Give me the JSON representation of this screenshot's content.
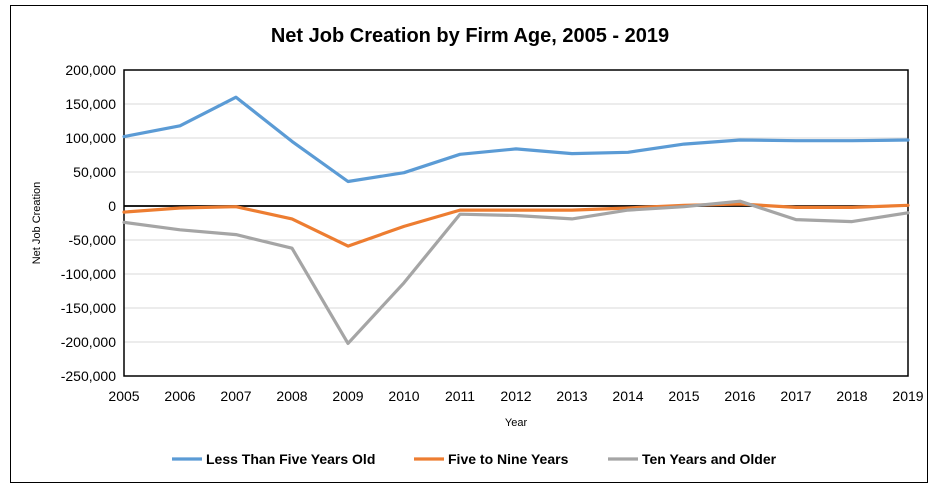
{
  "chart_data": {
    "type": "line",
    "title": "Net Job Creation by Firm Age, 2005 - 2019",
    "xlabel": "Year",
    "ylabel": "Net Job Creation",
    "categories": [
      "2005",
      "2006",
      "2007",
      "2008",
      "2009",
      "2010",
      "2011",
      "2012",
      "2013",
      "2014",
      "2015",
      "2016",
      "2017",
      "2018",
      "2019"
    ],
    "ylim": [
      -250000,
      200000
    ],
    "yticks": [
      200000,
      150000,
      100000,
      50000,
      0,
      -50000,
      -100000,
      -150000,
      -200000,
      -250000
    ],
    "ytick_labels": [
      "200,000",
      "150,000",
      "100,000",
      "50,000",
      "0",
      "-50,000",
      "-100,000",
      "-150,000",
      "-200,000",
      "-250,000"
    ],
    "grid": true,
    "legend_position": "bottom",
    "series": [
      {
        "name": "Less Than Five Years Old",
        "color": "#5B9BD5",
        "values": [
          102000,
          118000,
          160000,
          95000,
          36000,
          49000,
          76000,
          84000,
          77000,
          79000,
          91000,
          97000,
          96000,
          96000,
          97000
        ]
      },
      {
        "name": "Five to Nine Years",
        "color": "#ED7D31",
        "values": [
          -9000,
          -3000,
          -1000,
          -19000,
          -59000,
          -30000,
          -6000,
          -6000,
          -6000,
          -3000,
          1000,
          3000,
          -2000,
          -2000,
          1000
        ]
      },
      {
        "name": "Ten Years and Older",
        "color": "#A5A5A5",
        "values": [
          -24000,
          -35000,
          -42000,
          -62000,
          -202000,
          -113000,
          -12000,
          -14000,
          -19000,
          -6000,
          -1000,
          7000,
          -20000,
          -23000,
          -10000
        ]
      }
    ]
  }
}
